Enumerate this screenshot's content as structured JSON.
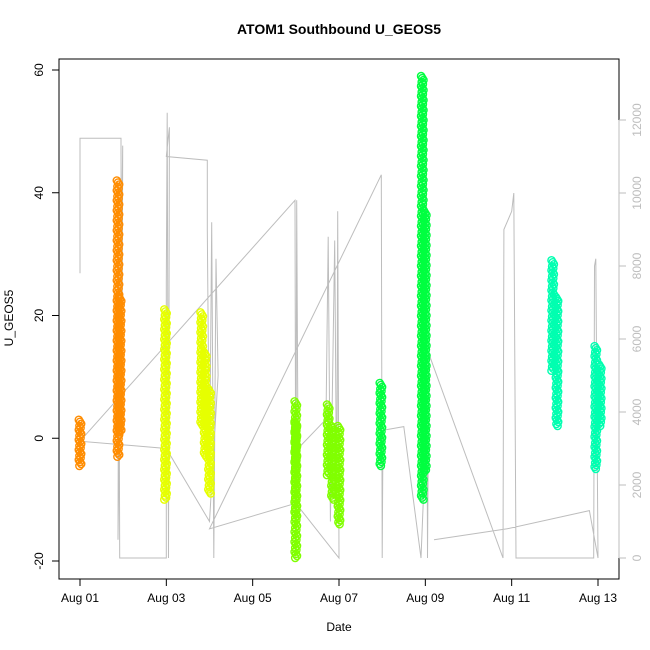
{
  "chart_data": {
    "type": "scatter",
    "title": "ATOM1 Southbound U_GEOS5",
    "xlabel": "Date",
    "ylabel": "U_GEOS5",
    "xlim": [
      0.0,
      12.25
    ],
    "ylim": [
      -20,
      61
    ],
    "y2lim": [
      -500,
      13400
    ],
    "x_ticks": [
      {
        "value": 0,
        "label": "Aug 01"
      },
      {
        "value": 2,
        "label": "Aug 03"
      },
      {
        "value": 4,
        "label": "Aug 05"
      },
      {
        "value": 6,
        "label": "Aug 07"
      },
      {
        "value": 8,
        "label": "Aug 09"
      },
      {
        "value": 10,
        "label": "Aug 11"
      },
      {
        "value": 12,
        "label": "Aug 13"
      }
    ],
    "y_ticks": [
      -20,
      0,
      20,
      40,
      60
    ],
    "y2_ticks": [
      0,
      2000,
      4000,
      6000,
      8000,
      10000,
      12000
    ],
    "grid": false,
    "altitude_trace": {
      "axis": "right",
      "color": "#bdbdbd",
      "points": [
        [
          0.0,
          7800
        ],
        [
          0.0,
          11500
        ],
        [
          0.95,
          11500
        ],
        [
          0.95,
          11200
        ],
        [
          0.97,
          4200
        ],
        [
          0.99,
          11300
        ],
        [
          0.88,
          500
        ],
        [
          0.9,
          8000
        ],
        [
          0.92,
          0
        ],
        [
          2.0,
          0
        ],
        [
          2.0,
          7500
        ],
        [
          2.02,
          12200
        ],
        [
          2.05,
          0
        ],
        [
          2.07,
          11800
        ],
        [
          2.0,
          11000
        ],
        [
          2.95,
          10900
        ],
        [
          2.95,
          9000
        ],
        [
          3.0,
          2000
        ],
        [
          3.05,
          9200
        ],
        [
          3.1,
          0
        ],
        [
          3.15,
          8200
        ],
        [
          3.2,
          5000
        ],
        [
          3.0,
          1000
        ],
        [
          2.0,
          3000
        ],
        [
          0.0,
          3200
        ],
        [
          4.98,
          9800
        ],
        [
          5.0,
          0
        ],
        [
          5.02,
          9800
        ],
        [
          5.05,
          3000
        ],
        [
          5.7,
          3800
        ],
        [
          5.75,
          8800
        ],
        [
          5.8,
          1000
        ],
        [
          5.9,
          8700
        ],
        [
          5.95,
          1000
        ],
        [
          5.97,
          9500
        ],
        [
          6.0,
          0
        ],
        [
          5.0,
          1500
        ],
        [
          3.0,
          800
        ],
        [
          6.98,
          10500
        ],
        [
          7.0,
          0
        ],
        [
          7.02,
          3500
        ],
        [
          7.5,
          3600
        ],
        [
          7.9,
          0
        ],
        [
          7.95,
          1500
        ],
        [
          8.0,
          5000
        ],
        [
          8.02,
          12800
        ],
        [
          8.05,
          0
        ],
        [
          8.08,
          5600
        ],
        [
          9.8,
          0
        ],
        [
          9.82,
          9000
        ],
        [
          10.0,
          9500
        ],
        [
          10.05,
          10000
        ],
        [
          10.1,
          0
        ],
        [
          11.9,
          0
        ],
        [
          11.92,
          8000
        ],
        [
          11.95,
          8200
        ],
        [
          12.0,
          0
        ],
        [
          11.8,
          1300
        ],
        [
          9.9,
          800
        ],
        [
          8.2,
          500
        ]
      ]
    },
    "series": [
      {
        "color": "#ff8c00",
        "segments": [
          [
            0.0,
            3.0,
            -4.5
          ],
          [
            0.88,
            42.0,
            -3.0
          ],
          [
            0.93,
            23.0,
            1.0
          ]
        ]
      },
      {
        "color": "#e6ff00",
        "segments": [
          [
            1.98,
            21.0,
            -10.0
          ],
          [
            2.82,
            20.5,
            2.0
          ],
          [
            2.9,
            14.0,
            -3.0
          ],
          [
            3.0,
            8.0,
            -9.0
          ]
        ]
      },
      {
        "color": "#80ff00",
        "segments": [
          [
            5.0,
            6.0,
            -19.5
          ],
          [
            5.0,
            2.5,
            -13.0
          ],
          [
            5.75,
            5.5,
            -6.0
          ],
          [
            5.85,
            2.0,
            -10.0
          ],
          [
            6.0,
            2.0,
            -14.0
          ]
        ]
      },
      {
        "color": "#00ff40",
        "segments": [
          [
            6.97,
            9.0,
            -4.5
          ],
          [
            7.93,
            59.0,
            -10.0
          ],
          [
            8.0,
            37.0,
            -5.5
          ]
        ]
      },
      {
        "color": "#00ffb0",
        "segments": [
          [
            10.95,
            29.0,
            11.0
          ],
          [
            11.05,
            23.0,
            2.0
          ],
          [
            11.95,
            15.0,
            -5.0
          ],
          [
            12.05,
            12.0,
            2.0
          ]
        ]
      }
    ]
  }
}
